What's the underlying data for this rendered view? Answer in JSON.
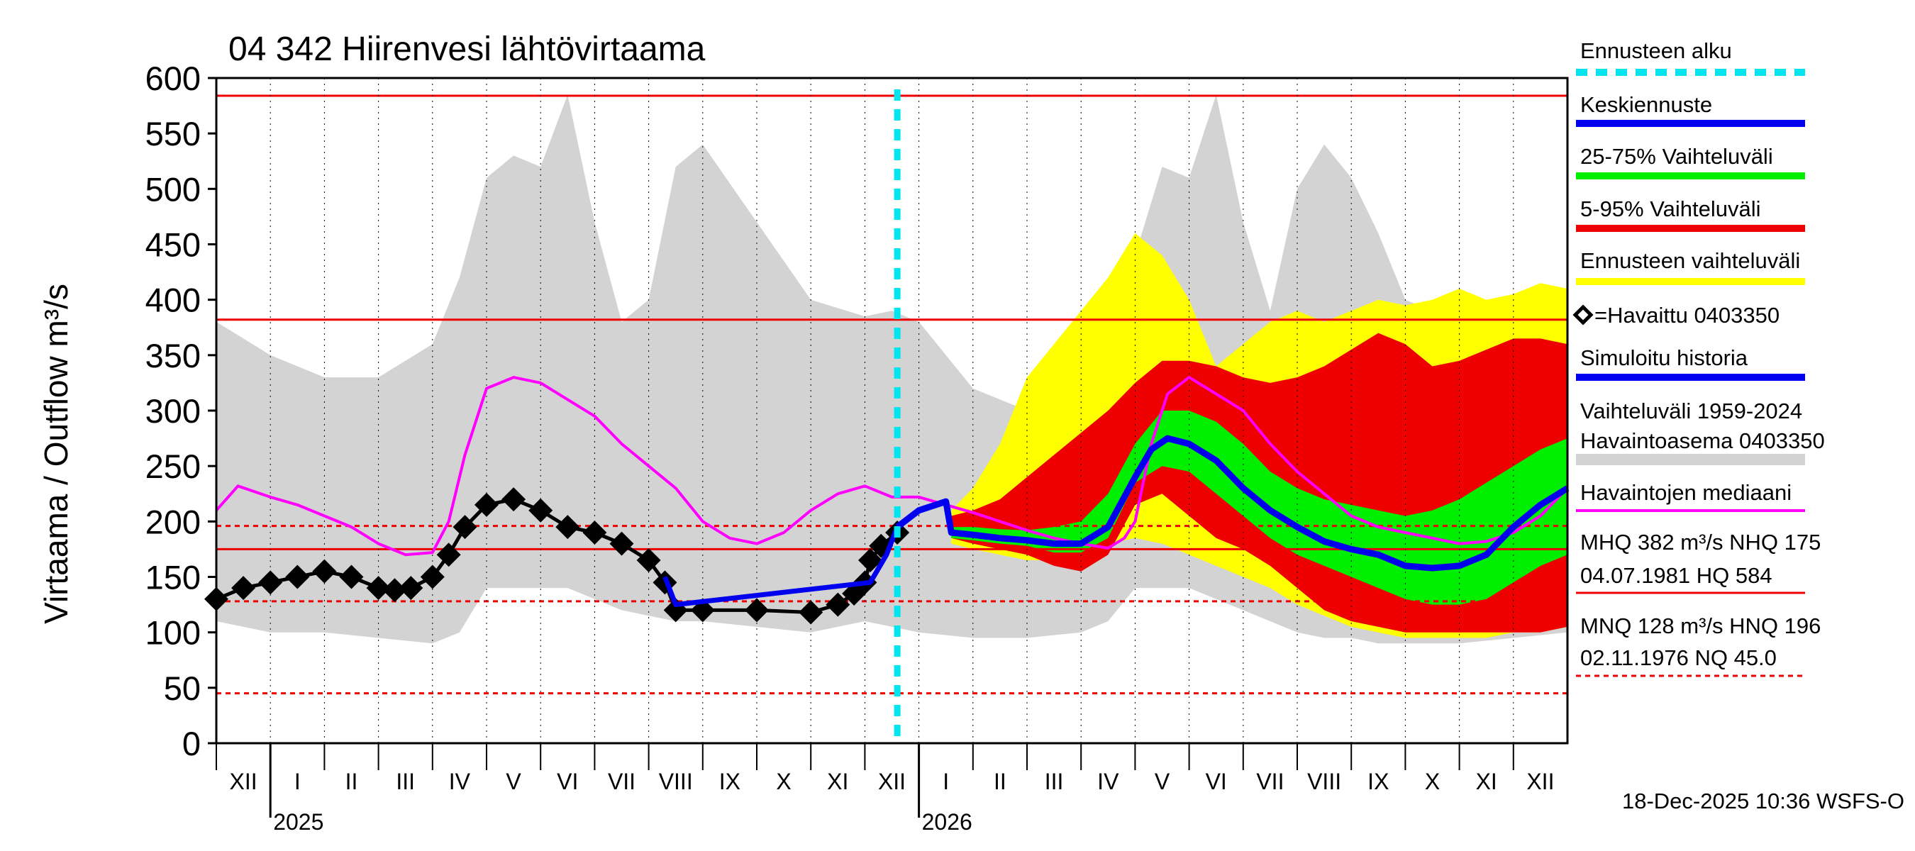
{
  "chart_data": {
    "type": "area",
    "title": "04 342 Hiirenvesi lähtövirtaama",
    "ylabel": "Virtaama / Outflow    m³/s",
    "ylim": [
      0,
      600
    ],
    "yticks": [
      0,
      50,
      100,
      150,
      200,
      250,
      300,
      350,
      400,
      450,
      500,
      550,
      600
    ],
    "xlim": [
      0,
      25
    ],
    "forecast_start": 12.6,
    "months": [
      "XII",
      "I",
      "II",
      "III",
      "IV",
      "V",
      "VI",
      "VII",
      "VIII",
      "IX",
      "X",
      "XI",
      "XII",
      "I",
      "II",
      "III",
      "IV",
      "V",
      "VI",
      "VII",
      "VIII",
      "IX",
      "X",
      "XI",
      "XII"
    ],
    "years": [
      {
        "label": "2025",
        "x": 1
      },
      {
        "label": "2026",
        "x": 13
      }
    ],
    "reference_lines": [
      {
        "name": "HQ",
        "value": 584,
        "style": "solid"
      },
      {
        "name": "MHQ",
        "value": 382,
        "style": "solid"
      },
      {
        "name": "HNQ",
        "value": 196,
        "style": "dashed"
      },
      {
        "name": "NHQ",
        "value": 175,
        "style": "solid"
      },
      {
        "name": "MNQ",
        "value": 128,
        "style": "dashed"
      },
      {
        "name": "NQ",
        "value": 45.0,
        "style": "dashed"
      }
    ],
    "historical_range_1959_2024": {
      "x": [
        0,
        1,
        2,
        3,
        4,
        4.5,
        5,
        5.5,
        6,
        6.5,
        7,
        7.5,
        8,
        8.5,
        9,
        10,
        11,
        12,
        12.5,
        13,
        14,
        15,
        16,
        16.5,
        17,
        17.5,
        18,
        18.5,
        19,
        19.5,
        20,
        20.5,
        21,
        21.5,
        22,
        23,
        24,
        25
      ],
      "upper": [
        380,
        350,
        330,
        330,
        360,
        420,
        510,
        530,
        520,
        585,
        470,
        380,
        400,
        520,
        540,
        470,
        400,
        385,
        390,
        380,
        320,
        300,
        330,
        360,
        440,
        520,
        510,
        585,
        470,
        390,
        500,
        540,
        510,
        460,
        400,
        380,
        385,
        390
      ],
      "lower": [
        110,
        100,
        100,
        95,
        90,
        100,
        140,
        140,
        140,
        140,
        130,
        120,
        115,
        110,
        110,
        105,
        100,
        110,
        105,
        100,
        95,
        95,
        100,
        110,
        140,
        140,
        140,
        130,
        120,
        110,
        100,
        95,
        95,
        90,
        90,
        90,
        95,
        100
      ]
    },
    "forecast_range": {
      "x": [
        13.6,
        14,
        14.5,
        15,
        15.5,
        16,
        16.5,
        17,
        17.5,
        18,
        18.5,
        19,
        19.5,
        20,
        20.5,
        21,
        21.5,
        22,
        22.5,
        23,
        23.5,
        24,
        24.5,
        25
      ],
      "upper": [
        210,
        230,
        270,
        330,
        360,
        390,
        420,
        460,
        440,
        400,
        340,
        360,
        380,
        390,
        380,
        390,
        400,
        395,
        400,
        410,
        400,
        405,
        415,
        410
      ],
      "lower": [
        180,
        175,
        170,
        165,
        165,
        170,
        180,
        185,
        180,
        170,
        160,
        150,
        140,
        125,
        115,
        105,
        100,
        95,
        95,
        95,
        95,
        100,
        100,
        105
      ]
    },
    "range_5_95": {
      "x": [
        13.6,
        14,
        14.5,
        15,
        15.5,
        16,
        16.5,
        17,
        17.5,
        18,
        18.5,
        19,
        19.5,
        20,
        20.5,
        21,
        21.5,
        22,
        22.5,
        23,
        23.5,
        24,
        24.5,
        25
      ],
      "upper": [
        205,
        210,
        220,
        240,
        260,
        280,
        300,
        325,
        345,
        345,
        340,
        330,
        325,
        330,
        340,
        355,
        370,
        360,
        340,
        345,
        355,
        365,
        365,
        360
      ],
      "lower": [
        185,
        180,
        175,
        170,
        160,
        155,
        170,
        215,
        225,
        205,
        185,
        175,
        160,
        140,
        120,
        110,
        105,
        100,
        100,
        100,
        100,
        100,
        100,
        105
      ]
    },
    "range_25_75": {
      "x": [
        13.6,
        14,
        14.5,
        15,
        15.5,
        16,
        16.5,
        17,
        17.5,
        18,
        18.5,
        19,
        19.5,
        20,
        20.5,
        21,
        21.5,
        22,
        22.5,
        23,
        23.5,
        24,
        24.5,
        25
      ],
      "upper": [
        195,
        195,
        193,
        192,
        195,
        200,
        225,
        270,
        300,
        300,
        290,
        270,
        245,
        230,
        220,
        215,
        210,
        205,
        210,
        220,
        235,
        250,
        265,
        275
      ],
      "lower": [
        185,
        183,
        180,
        178,
        172,
        172,
        185,
        235,
        250,
        245,
        225,
        205,
        185,
        170,
        160,
        150,
        140,
        130,
        125,
        125,
        130,
        145,
        160,
        170
      ]
    },
    "series": [
      {
        "name": "Havaintojen mediaani",
        "color": "#ff00ff",
        "x": [
          0,
          0.4,
          1,
          1.5,
          2,
          2.5,
          3,
          3.5,
          4,
          4.3,
          4.6,
          5,
          5.5,
          6,
          6.5,
          7,
          7.5,
          8,
          8.5,
          9,
          9.5,
          10,
          10.5,
          11,
          11.5,
          12,
          12.5,
          13,
          13.5,
          14,
          14.5,
          15,
          15.5,
          16,
          16.5,
          16.8,
          17,
          17.3,
          17.6,
          18,
          18.5,
          19,
          19.5,
          20,
          20.5,
          21,
          21.5,
          22,
          22.5,
          23,
          23.5,
          24,
          24.5,
          25
        ],
        "y": [
          210,
          232,
          222,
          215,
          205,
          195,
          180,
          170,
          172,
          200,
          260,
          320,
          330,
          325,
          310,
          295,
          270,
          250,
          230,
          200,
          185,
          180,
          190,
          210,
          225,
          232,
          222,
          222,
          215,
          208,
          200,
          192,
          185,
          180,
          176,
          185,
          200,
          270,
          315,
          330,
          315,
          300,
          270,
          245,
          225,
          205,
          195,
          190,
          185,
          180,
          182,
          190,
          205,
          230
        ]
      },
      {
        "name": "Keskiennuste",
        "color": "#0000ee",
        "x": [
          12.6,
          13,
          13.5,
          13.6,
          14,
          14.5,
          15,
          15.5,
          16,
          16.5,
          17,
          17.3,
          17.6,
          18,
          18.5,
          19,
          19.5,
          20,
          20.5,
          21,
          21.5,
          22,
          22.5,
          23,
          23.5,
          24,
          24.5,
          25
        ],
        "y": [
          195,
          210,
          218,
          190,
          188,
          185,
          183,
          180,
          180,
          195,
          240,
          265,
          275,
          270,
          255,
          230,
          210,
          195,
          182,
          175,
          170,
          160,
          158,
          160,
          170,
          195,
          215,
          230
        ]
      },
      {
        "name": "Simuloitu historia",
        "color": "#0000ee",
        "x": [
          8.3,
          8.5,
          12.1,
          12.4,
          12.6
        ],
        "y": [
          150,
          125,
          145,
          170,
          195
        ]
      },
      {
        "name": "Havaittu 0403350",
        "color": "#000000",
        "x": [
          0,
          0.5,
          1,
          1.5,
          2,
          2.5,
          3,
          3.3,
          3.6,
          4,
          4.3,
          4.6,
          5,
          5.5,
          6,
          6.5,
          7,
          7.5,
          8,
          8.3,
          8.5,
          9,
          10,
          11,
          11.5,
          11.8,
          12,
          12.1,
          12.3,
          12.6
        ],
        "y": [
          130,
          140,
          145,
          150,
          155,
          150,
          140,
          138,
          140,
          150,
          170,
          195,
          215,
          220,
          210,
          195,
          190,
          180,
          165,
          145,
          120,
          120,
          120,
          118,
          125,
          135,
          145,
          165,
          178,
          190
        ]
      }
    ],
    "legend": [
      {
        "label": "Ennusteen alku",
        "color": "#00e5ee",
        "style": "dotted"
      },
      {
        "label": "Keskiennuste",
        "color": "#0000ee",
        "style": "line"
      },
      {
        "label": "25-75% Vaihteluväli",
        "color": "#00ee00",
        "style": "line"
      },
      {
        "label": "5-95% Vaihteluväli",
        "color": "#ee0000",
        "style": "line"
      },
      {
        "label": "Ennusteen vaihteluväli",
        "color": "#ffff00",
        "style": "line"
      },
      {
        "label": "=Havaittu 0403350",
        "color": "#000000",
        "style": "marker"
      },
      {
        "label": "Simuloitu historia",
        "color": "#0000ee",
        "style": "line"
      },
      {
        "label": "Vaihteluväli 1959-2024",
        "color": "#d3d3d3",
        "style": "text"
      },
      {
        "label": "Havaintoasema 0403350",
        "color": "#d3d3d3",
        "style": "line"
      },
      {
        "label": "Havaintojen mediaani",
        "color": "#ff00ff",
        "style": "line"
      }
    ],
    "stats": {
      "line1": "MHQ  382 m³/s NHQ  175",
      "line2": "04.07.1981 HQ  584",
      "line3": "MNQ  128 m³/s HNQ  196",
      "line4": "02.11.1976 NQ 45.0"
    },
    "footer": "18-Dec-2025 10:36 WSFS-O"
  }
}
